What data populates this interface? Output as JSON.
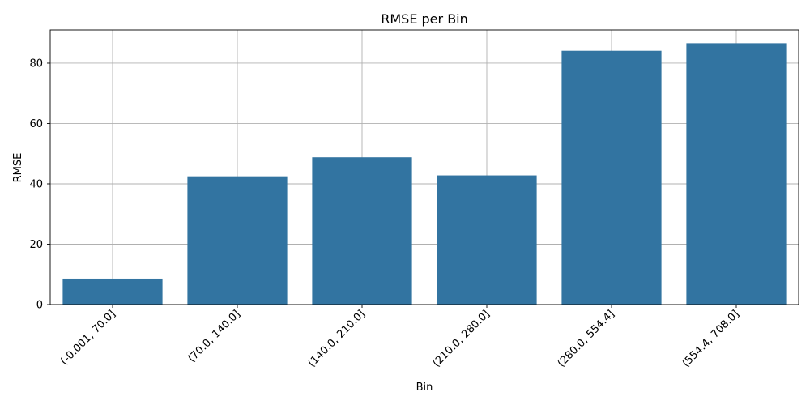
{
  "chart_data": {
    "type": "bar",
    "title": "RMSE per Bin",
    "xlabel": "Bin",
    "ylabel": "RMSE",
    "categories": [
      "(-0.001, 70.0]",
      "(70.0, 140.0]",
      "(140.0, 210.0]",
      "(210.0, 280.0]",
      "(280.0, 554.4]",
      "(554.4, 708.0]"
    ],
    "values": [
      8.6,
      42.5,
      48.8,
      42.8,
      84.1,
      86.6
    ],
    "ylim": [
      0,
      91
    ],
    "yticks": [
      0,
      20,
      40,
      60,
      80
    ],
    "grid": true,
    "bar_color": "#3274a1"
  }
}
